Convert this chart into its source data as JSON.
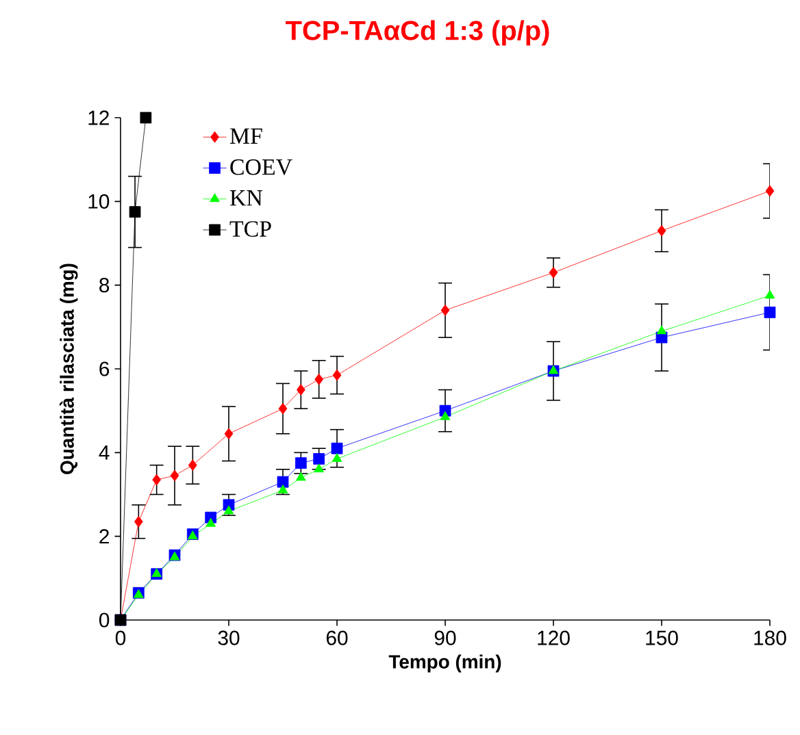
{
  "chart_data": {
    "type": "line",
    "title": "TCP-TAαCd 1:3 (p/p)",
    "xlabel": "Tempo (min)",
    "ylabel": "Quantità rilasciata (mg)",
    "xlim": [
      0,
      180
    ],
    "xticks": [
      0,
      30,
      60,
      90,
      120,
      150,
      180
    ],
    "ylim": [
      0,
      12
    ],
    "yticks": [
      0,
      2,
      4,
      6,
      8,
      10,
      12
    ],
    "grid": false,
    "legend": "top left",
    "line_style": "solid",
    "series": [
      {
        "name": "MF",
        "color": "#ff0000",
        "marker": "diamond",
        "x": [
          0,
          5,
          10,
          15,
          20,
          30,
          45,
          50,
          55,
          60,
          90,
          120,
          150,
          180
        ],
        "values": [
          0,
          2.35,
          3.35,
          3.45,
          3.7,
          4.45,
          5.05,
          5.5,
          5.75,
          5.85,
          7.4,
          8.3,
          9.3,
          10.25
        ],
        "errors": [
          null,
          0.4,
          0.35,
          0.7,
          0.45,
          0.65,
          0.6,
          0.45,
          0.45,
          0.45,
          0.65,
          0.35,
          0.5,
          0.65
        ]
      },
      {
        "name": "COEV",
        "color": "#0000ff",
        "marker": "square",
        "x": [
          0,
          5,
          10,
          15,
          20,
          25,
          30,
          45,
          50,
          55,
          60,
          90,
          120,
          150,
          180
        ],
        "values": [
          0,
          0.65,
          1.1,
          1.55,
          2.05,
          2.45,
          2.75,
          3.3,
          3.75,
          3.85,
          4.1,
          5.0,
          5.95,
          6.75,
          7.35
        ],
        "errors": [
          null,
          null,
          null,
          null,
          null,
          null,
          0.25,
          0.3,
          0.25,
          0.25,
          0.45,
          0.5,
          0.7,
          0.8,
          0.9
        ]
      },
      {
        "name": "KN",
        "color": "#00ff00",
        "marker": "triangle",
        "x": [
          0,
          5,
          10,
          15,
          20,
          25,
          30,
          45,
          50,
          55,
          60,
          90,
          120,
          150,
          180
        ],
        "values": [
          0,
          0.6,
          1.1,
          1.5,
          2.0,
          2.3,
          2.6,
          3.1,
          3.4,
          3.6,
          3.85,
          4.85,
          5.95,
          6.9,
          7.75
        ]
      },
      {
        "name": "TCP",
        "color": "#000000",
        "marker": "square",
        "x": [
          0,
          4,
          7
        ],
        "values": [
          0,
          9.75,
          12
        ],
        "errors": [
          null,
          0.85,
          null
        ]
      }
    ]
  }
}
